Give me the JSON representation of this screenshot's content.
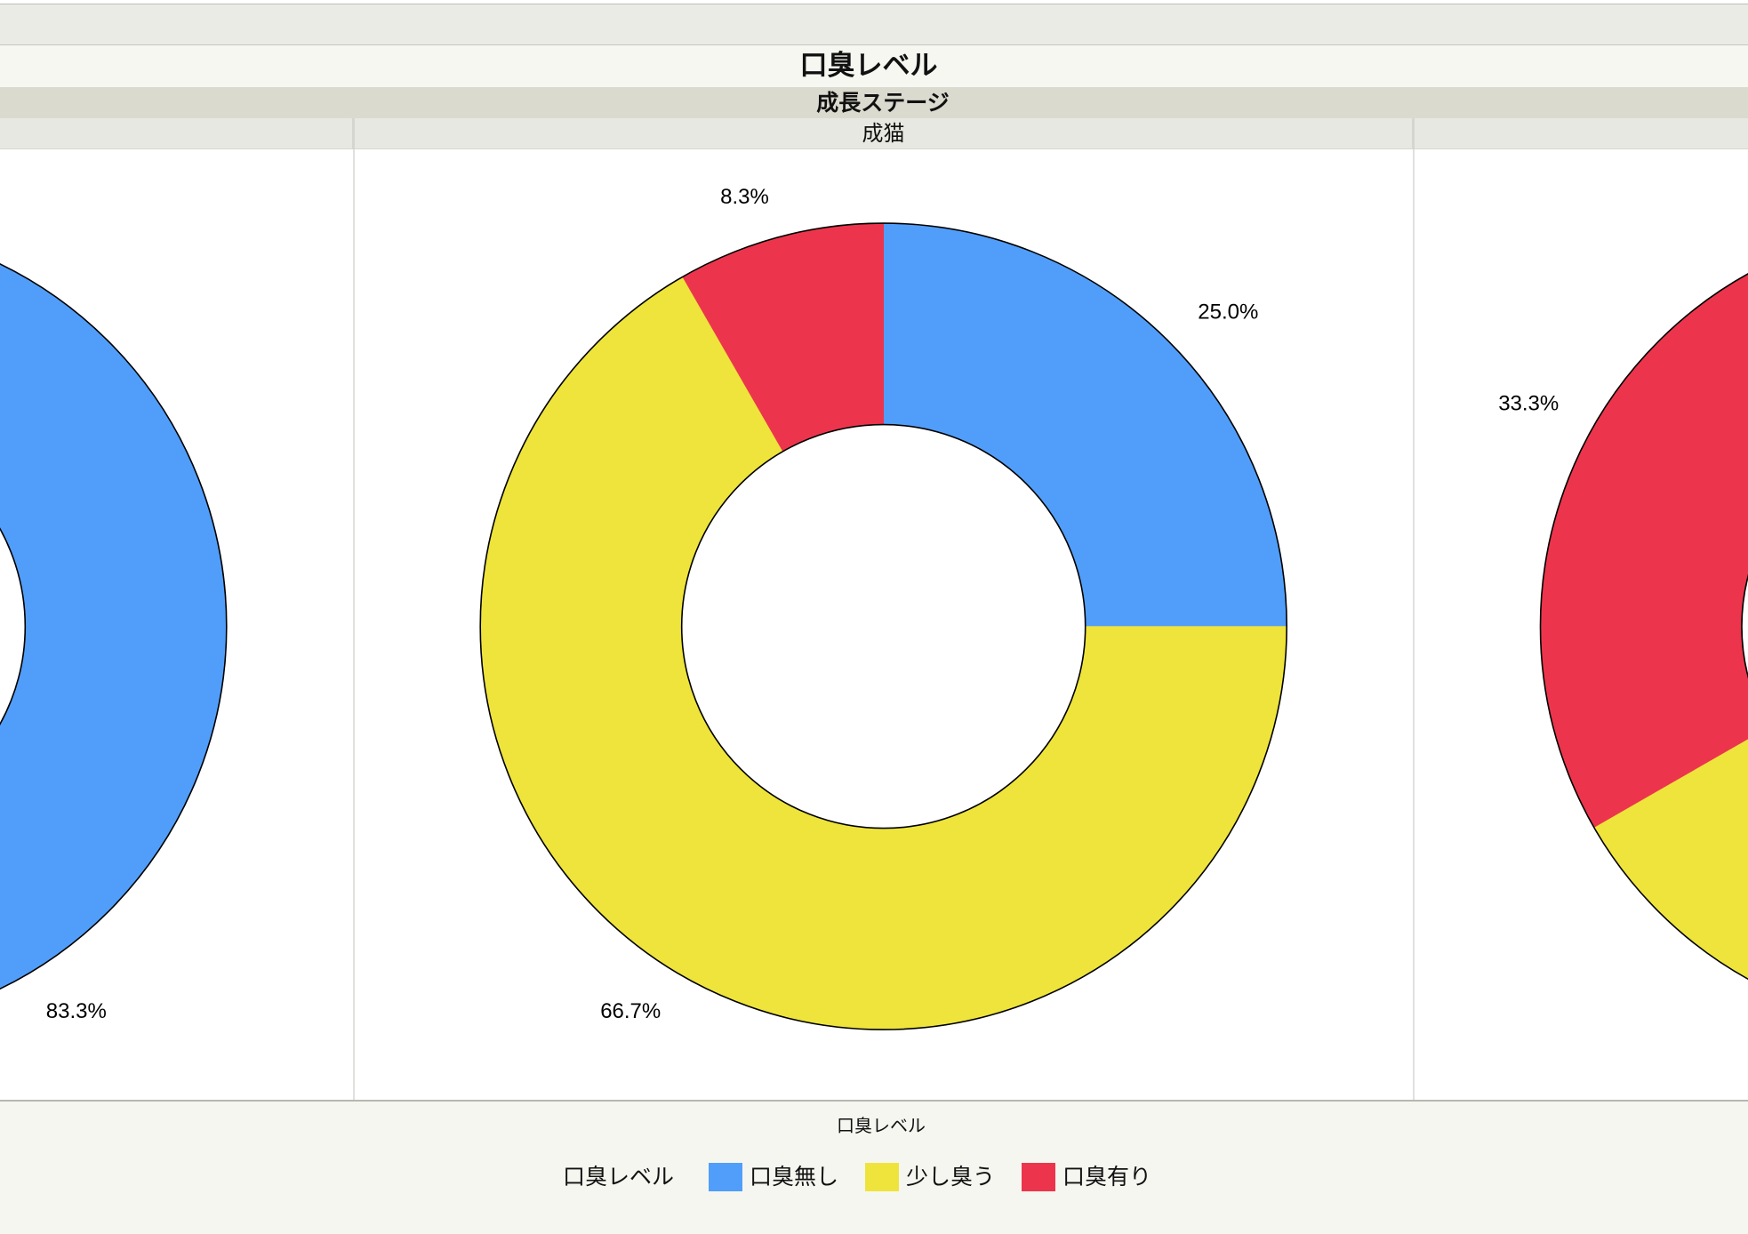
{
  "chart_data": {
    "type": "pie",
    "variant": "donut",
    "title": "口臭レベル",
    "facet_title": "成長ステージ",
    "categories": [
      "口臭無し",
      "少し臭う",
      "口臭有り"
    ],
    "colors": [
      "#519efa",
      "#eee43c",
      "#ec354c"
    ],
    "legend": {
      "title": "口臭レベル",
      "caption": "口臭レベル",
      "position": "bottom"
    },
    "panels": [
      {
        "values": [
          83.3,
          null,
          null
        ],
        "labels": [
          "83.3%",
          null,
          null
        ]
      },
      {
        "name": "成猫",
        "values": [
          25.0,
          66.7,
          8.3
        ],
        "labels": [
          "25.0%",
          "66.7%",
          "8.3%"
        ]
      },
      {
        "values": [
          null,
          null,
          33.3
        ],
        "labels": [
          null,
          null,
          "33.3%"
        ]
      }
    ]
  }
}
